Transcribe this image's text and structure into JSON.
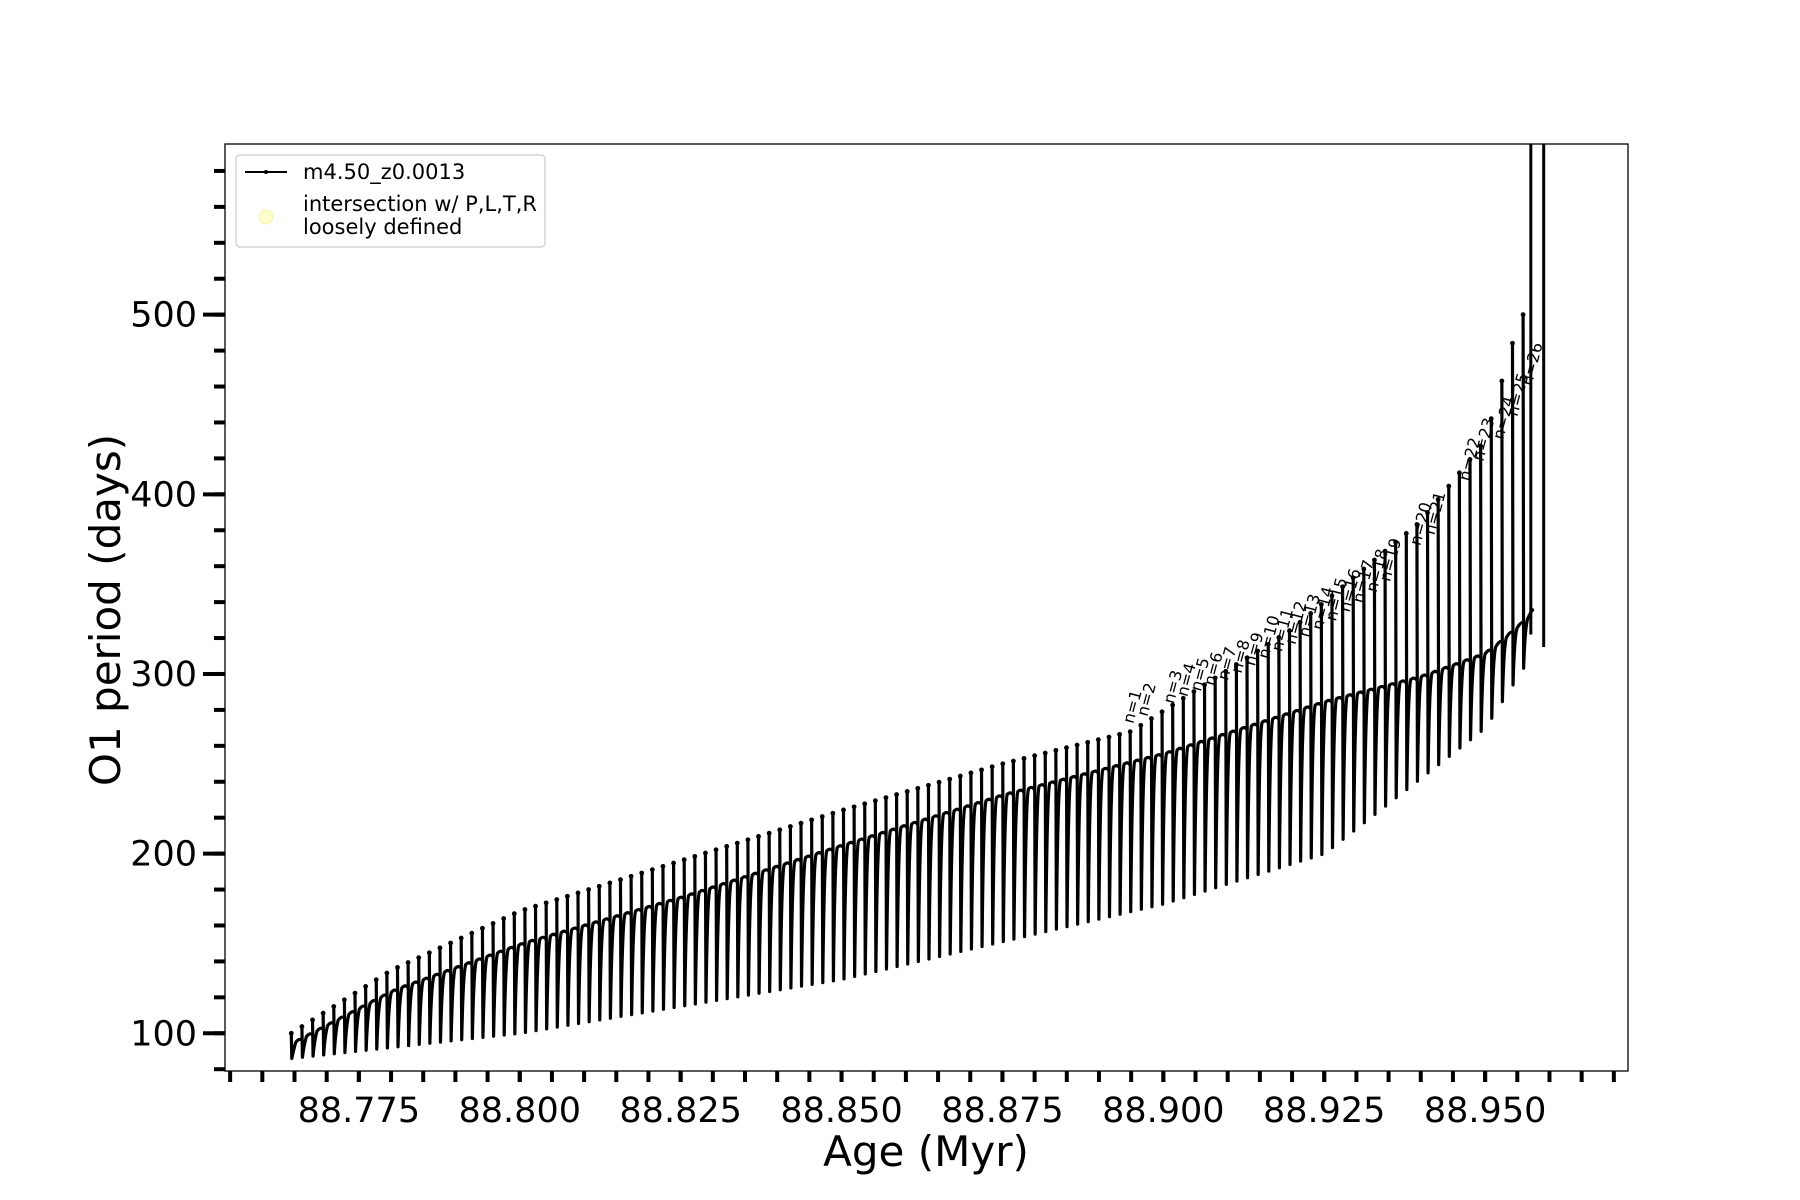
{
  "chart_data": {
    "type": "line",
    "xlabel": "Age (Myr)",
    "ylabel": "O1 period (days)",
    "xlim": [
      88.7542,
      88.9722
    ],
    "ylim": [
      79,
      595
    ],
    "x_ticks": [
      88.775,
      88.8,
      88.825,
      88.85,
      88.875,
      88.9,
      88.925,
      88.95
    ],
    "x_tick_labels": [
      "88.775",
      "88.800",
      "88.825",
      "88.850",
      "88.875",
      "88.900",
      "88.925",
      "88.950"
    ],
    "y_ticks": [
      100,
      200,
      300,
      400,
      500
    ],
    "y_tick_labels": [
      "100",
      "200",
      "300",
      "400",
      "500"
    ],
    "x_minor_step": 0.005,
    "y_minor_step": 20,
    "grid": false,
    "legend": {
      "placement": "top-left",
      "entries": [
        {
          "label": "m4.50_z0.0013",
          "marker": "line-dot",
          "color": "#000000"
        },
        {
          "label_lines": [
            "intersection w/ P,L,T,R",
            "loosely defined"
          ],
          "marker": "circle",
          "color": "#ffffcc"
        }
      ]
    },
    "series": [
      {
        "name": "m4.50_z0.0013",
        "color": "#000000",
        "pulse_start": 88.7645,
        "pulse_spacing": 0.00165,
        "pulse_count": 117,
        "envelope": [
          [
            88.7645,
            93
          ],
          [
            88.78,
            122
          ],
          [
            88.8,
            148
          ],
          [
            88.825,
            174
          ],
          [
            88.85,
            203
          ],
          [
            88.875,
            231
          ],
          [
            88.9,
            254
          ],
          [
            88.925,
            283
          ],
          [
            88.94,
            297
          ],
          [
            88.95,
            310
          ],
          [
            88.957,
            332
          ],
          [
            88.9605,
            358
          ]
        ],
        "spike_height": [
          [
            88.7645,
            100
          ],
          [
            88.78,
            135
          ],
          [
            88.8,
            168
          ],
          [
            88.825,
            196
          ],
          [
            88.85,
            224
          ],
          [
            88.875,
            250
          ],
          [
            88.895,
            268
          ],
          [
            88.92,
            325
          ],
          [
            88.94,
            385
          ],
          [
            88.95,
            430
          ],
          [
            88.9555,
            500
          ]
        ],
        "dip_depth": [
          [
            88.7645,
            86
          ],
          [
            88.8,
            100
          ],
          [
            88.85,
            130
          ],
          [
            88.9,
            172
          ],
          [
            88.925,
            200
          ],
          [
            88.95,
            270
          ],
          [
            88.958,
            315
          ]
        ],
        "vertical_lines": [
          {
            "x": 88.9571,
            "y_top": 595,
            "y_bottom": 322
          },
          {
            "x": 88.9591,
            "y_top": 595,
            "y_bottom": 315
          }
        ]
      }
    ],
    "annotations": [
      {
        "text": "n=1",
        "x": 88.8953,
        "y": 272
      },
      {
        "text": "n=2",
        "x": 88.8975,
        "y": 276
      },
      {
        "text": "n=3",
        "x": 88.9016,
        "y": 283
      },
      {
        "text": "n=4",
        "x": 88.9037,
        "y": 287
      },
      {
        "text": "n=5",
        "x": 88.9058,
        "y": 290
      },
      {
        "text": "n=6",
        "x": 88.9079,
        "y": 293
      },
      {
        "text": "n=7",
        "x": 88.91,
        "y": 296
      },
      {
        "text": "n=8",
        "x": 88.9121,
        "y": 300
      },
      {
        "text": "n=9",
        "x": 88.9142,
        "y": 304
      },
      {
        "text": "n=10",
        "x": 88.9163,
        "y": 308
      },
      {
        "text": "n=11",
        "x": 88.9184,
        "y": 312
      },
      {
        "text": "n=12",
        "x": 88.9205,
        "y": 316
      },
      {
        "text": "n=13",
        "x": 88.9226,
        "y": 320
      },
      {
        "text": "n=14",
        "x": 88.9247,
        "y": 324
      },
      {
        "text": "n=15",
        "x": 88.9268,
        "y": 329
      },
      {
        "text": "n=16",
        "x": 88.9289,
        "y": 334
      },
      {
        "text": "n=17",
        "x": 88.931,
        "y": 339
      },
      {
        "text": "n=18",
        "x": 88.9331,
        "y": 345
      },
      {
        "text": "n=19",
        "x": 88.9352,
        "y": 351
      },
      {
        "text": "n=20",
        "x": 88.9399,
        "y": 371
      },
      {
        "text": "n=21",
        "x": 88.9421,
        "y": 377
      },
      {
        "text": "n=22",
        "x": 88.9475,
        "y": 407
      },
      {
        "text": "n=23",
        "x": 88.9497,
        "y": 418
      },
      {
        "text": "n=24",
        "x": 88.9528,
        "y": 430
      },
      {
        "text": "n=25",
        "x": 88.955,
        "y": 443
      },
      {
        "text": "n=26",
        "x": 88.9572,
        "y": 460
      }
    ]
  }
}
